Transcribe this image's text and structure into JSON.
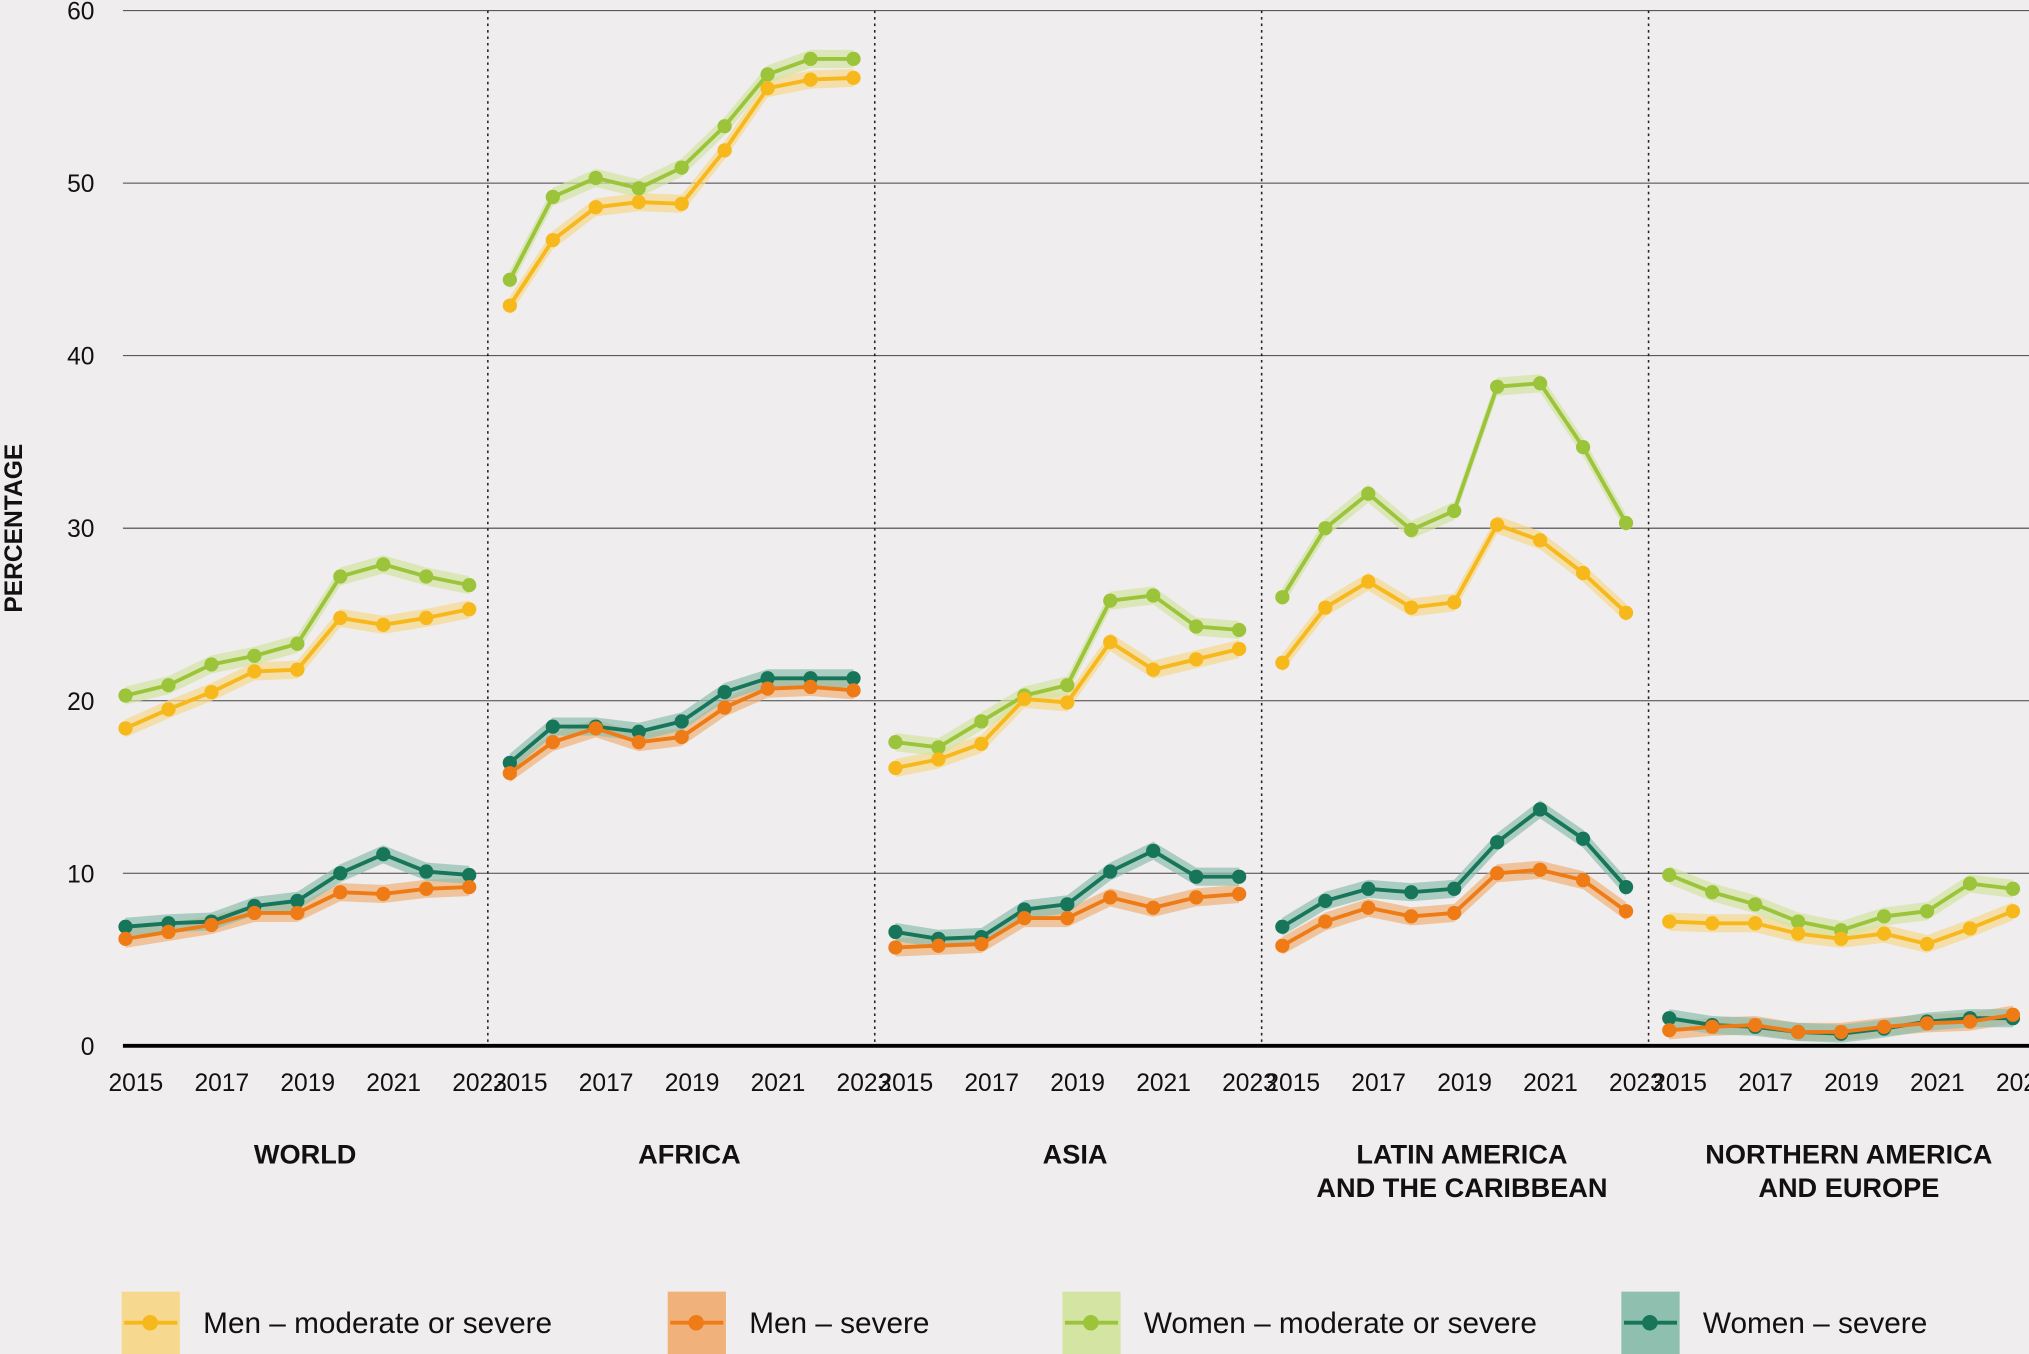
{
  "chart_data": {
    "type": "line",
    "ylabel": "PERCENTAGE",
    "xlabel": "",
    "ylim": [
      0,
      60
    ],
    "yticks": [
      0,
      10,
      20,
      30,
      40,
      50,
      60
    ],
    "grid": true,
    "legend_position": "bottom",
    "x": [
      2015,
      2016,
      2017,
      2018,
      2019,
      2020,
      2021,
      2022,
      2023
    ],
    "xtick_labels": [
      "2015",
      "2017",
      "2019",
      "2021",
      "2023"
    ],
    "series_styles": [
      {
        "name": "Men – moderate or severe",
        "color": "#f6b81a",
        "band": "#f6d98e"
      },
      {
        "name": "Men – severe",
        "color": "#ee7b16",
        "band": "#f0b27a"
      },
      {
        "name": "Women – moderate or severe",
        "color": "#9cc43b",
        "band": "#d3e4a3"
      },
      {
        "name": "Women – severe",
        "color": "#17765a",
        "band": "#8fbfae"
      }
    ],
    "panels": [
      {
        "title": [
          "WORLD"
        ],
        "series": [
          {
            "name": "Men – moderate or severe",
            "values": [
              18.4,
              19.5,
              20.5,
              21.7,
              21.8,
              24.8,
              24.4,
              24.8,
              25.3
            ]
          },
          {
            "name": "Men – severe",
            "values": [
              6.2,
              6.6,
              7.0,
              7.7,
              7.7,
              8.9,
              8.8,
              9.1,
              9.2
            ]
          },
          {
            "name": "Women – moderate or severe",
            "values": [
              20.3,
              20.9,
              22.1,
              22.6,
              23.3,
              27.2,
              27.9,
              27.2,
              26.7
            ]
          },
          {
            "name": "Women – severe",
            "values": [
              6.9,
              7.1,
              7.2,
              8.1,
              8.4,
              10.0,
              11.1,
              10.1,
              9.9
            ]
          }
        ]
      },
      {
        "title": [
          "AFRICA"
        ],
        "series": [
          {
            "name": "Men – moderate or severe",
            "values": [
              42.9,
              46.7,
              48.6,
              48.9,
              48.8,
              51.9,
              55.5,
              56.0,
              56.1
            ]
          },
          {
            "name": "Men – severe",
            "values": [
              15.8,
              17.6,
              18.4,
              17.6,
              17.9,
              19.6,
              20.7,
              20.8,
              20.6
            ]
          },
          {
            "name": "Women – moderate or severe",
            "values": [
              44.4,
              49.2,
              50.3,
              49.7,
              50.9,
              53.3,
              56.3,
              57.2,
              57.2
            ]
          },
          {
            "name": "Women – severe",
            "values": [
              16.4,
              18.5,
              18.5,
              18.2,
              18.8,
              20.5,
              21.3,
              21.3,
              21.3
            ]
          }
        ]
      },
      {
        "title": [
          "ASIA"
        ],
        "series": [
          {
            "name": "Men – moderate or severe",
            "values": [
              16.1,
              16.6,
              17.5,
              20.1,
              19.9,
              23.4,
              21.8,
              22.4,
              23.0
            ]
          },
          {
            "name": "Men – severe",
            "values": [
              5.7,
              5.8,
              5.9,
              7.4,
              7.4,
              8.6,
              8.0,
              8.6,
              8.8
            ]
          },
          {
            "name": "Women – moderate or severe",
            "values": [
              17.6,
              17.3,
              18.8,
              20.3,
              20.9,
              25.8,
              26.1,
              24.3,
              24.1
            ]
          },
          {
            "name": "Women – severe",
            "values": [
              6.6,
              6.2,
              6.3,
              7.9,
              8.2,
              10.1,
              11.3,
              9.8,
              9.8
            ]
          }
        ]
      },
      {
        "title": [
          "LATIN AMERICA",
          "AND THE CARIBBEAN"
        ],
        "series": [
          {
            "name": "Men – moderate or severe",
            "values": [
              22.2,
              25.4,
              26.9,
              25.4,
              25.7,
              30.2,
              29.3,
              27.4,
              25.1
            ]
          },
          {
            "name": "Men – severe",
            "values": [
              5.8,
              7.2,
              8.0,
              7.5,
              7.7,
              10.0,
              10.2,
              9.6,
              7.8
            ]
          },
          {
            "name": "Women – moderate or severe",
            "values": [
              26.0,
              30.0,
              32.0,
              29.9,
              31.0,
              38.2,
              38.4,
              34.7,
              30.3
            ]
          },
          {
            "name": "Women – severe",
            "values": [
              6.9,
              8.4,
              9.1,
              8.9,
              9.1,
              11.8,
              13.7,
              12.0,
              9.2
            ]
          }
        ]
      },
      {
        "title": [
          "NORTHERN AMERICA",
          "AND EUROPE"
        ],
        "series": [
          {
            "name": "Men – moderate or severe",
            "values": [
              7.2,
              7.1,
              7.1,
              6.5,
              6.2,
              6.5,
              5.9,
              6.8,
              7.8
            ]
          },
          {
            "name": "Men – severe",
            "values": [
              0.9,
              1.1,
              1.2,
              0.8,
              0.8,
              1.1,
              1.3,
              1.4,
              1.8
            ]
          },
          {
            "name": "Women – moderate or severe",
            "values": [
              9.9,
              8.9,
              8.2,
              7.2,
              6.7,
              7.5,
              7.8,
              9.4,
              9.1
            ]
          },
          {
            "name": "Women – severe",
            "values": [
              1.6,
              1.2,
              1.1,
              0.8,
              0.7,
              1.0,
              1.4,
              1.6,
              1.6
            ]
          }
        ]
      }
    ]
  }
}
